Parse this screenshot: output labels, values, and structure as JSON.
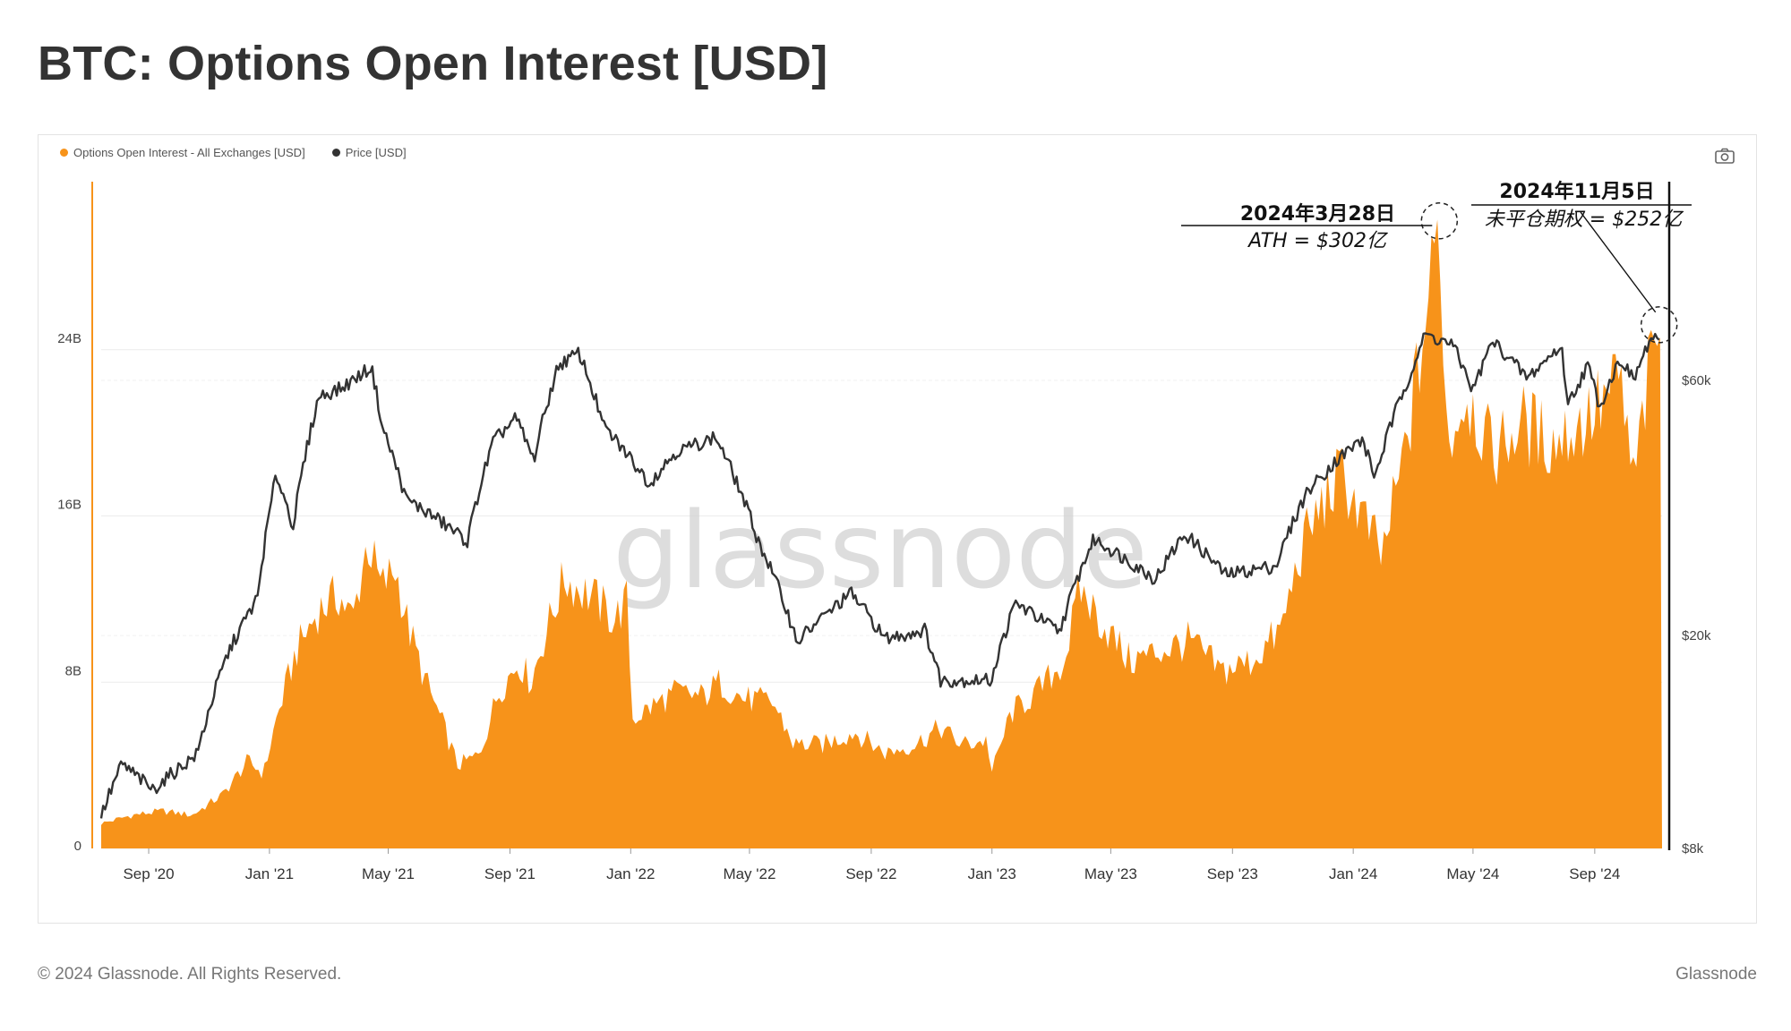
{
  "title": "BTC: Options Open Interest [USD]",
  "legend": [
    {
      "label": "Options Open Interest - All Exchanges [USD]",
      "color": "#f7931a"
    },
    {
      "label": "Price [USD]",
      "color": "#333333"
    }
  ],
  "watermark": "glassnode",
  "footer": {
    "copyright": "© 2024 Glassnode. All Rights Reserved.",
    "brand": "Glassnode"
  },
  "icons": {
    "camera": "camera-icon"
  },
  "annotations": [
    {
      "date": "2024年3月28日",
      "text": "ATH = $302亿",
      "value_usd": 30200000000
    },
    {
      "date": "2024年11月5日",
      "text": "未平仓期权 = $252亿",
      "value_usd": 25200000000
    }
  ],
  "chart_data": {
    "type": "area",
    "x_tick_labels": [
      "Sep '20",
      "Jan '21",
      "May '21",
      "Sep '21",
      "Jan '22",
      "May '22",
      "Sep '22",
      "Jan '23",
      "May '23",
      "Sep '23",
      "Jan '24",
      "May '24",
      "Sep '24"
    ],
    "left_axis": {
      "ticks": [
        "0",
        "8B",
        "16B",
        "24B"
      ],
      "ylim": [
        0,
        32000000000
      ]
    },
    "right_axis": {
      "ticks": [
        "$8k",
        "$20k",
        "$60k"
      ],
      "scale": "log"
    },
    "grid": true,
    "legend_position": "top-left",
    "x_range": [
      "2020-07-15",
      "2024-11-08"
    ],
    "series": [
      {
        "name": "Options Open Interest - All Exchanges [USD]",
        "type": "area",
        "axis": "left",
        "color": "#f7931a",
        "points": [
          [
            "2020-07-15",
            1.2
          ],
          [
            "2020-08-15",
            1.6
          ],
          [
            "2020-09-15",
            1.8
          ],
          [
            "2020-10-15",
            1.6
          ],
          [
            "2020-11-15",
            2.6
          ],
          [
            "2020-12-10",
            4.2
          ],
          [
            "2020-12-26",
            3.6
          ],
          [
            "2021-01-08",
            6.2
          ],
          [
            "2021-01-28",
            9.5
          ],
          [
            "2021-02-20",
            11.5
          ],
          [
            "2021-03-12",
            12.2
          ],
          [
            "2021-03-26",
            11.0
          ],
          [
            "2021-04-10",
            14.8
          ],
          [
            "2021-04-24",
            12.5
          ],
          [
            "2021-05-08",
            13.5
          ],
          [
            "2021-05-22",
            10.5
          ],
          [
            "2021-06-08",
            8.0
          ],
          [
            "2021-06-25",
            6.0
          ],
          [
            "2021-07-10",
            4.0
          ],
          [
            "2021-08-01",
            4.5
          ],
          [
            "2021-08-20",
            7.5
          ],
          [
            "2021-09-10",
            9.0
          ],
          [
            "2021-09-22",
            8.0
          ],
          [
            "2021-10-08",
            10.5
          ],
          [
            "2021-10-26",
            13.0
          ],
          [
            "2021-11-10",
            12.5
          ],
          [
            "2021-11-26",
            12.0
          ],
          [
            "2021-12-15",
            11.0
          ],
          [
            "2021-12-30",
            12.0
          ],
          [
            "2022-01-01",
            6.2
          ],
          [
            "2022-02-15",
            7.5
          ],
          [
            "2022-03-15",
            7.3
          ],
          [
            "2022-04-01",
            8.0
          ],
          [
            "2022-04-25",
            7.2
          ],
          [
            "2022-05-25",
            7.0
          ],
          [
            "2022-06-15",
            5.0
          ],
          [
            "2022-07-15",
            5.0
          ],
          [
            "2022-08-15",
            5.6
          ],
          [
            "2022-09-15",
            4.6
          ],
          [
            "2022-10-15",
            5.0
          ],
          [
            "2022-11-10",
            5.8
          ],
          [
            "2022-12-01",
            5.0
          ],
          [
            "2022-12-28",
            5.2
          ],
          [
            "2022-12-31",
            3.5
          ],
          [
            "2023-01-20",
            6.5
          ],
          [
            "2023-02-15",
            7.5
          ],
          [
            "2023-03-15",
            9.0
          ],
          [
            "2023-03-31",
            12.5
          ],
          [
            "2023-04-20",
            11.0
          ],
          [
            "2023-05-20",
            9.0
          ],
          [
            "2023-06-20",
            9.5
          ],
          [
            "2023-07-20",
            10.0
          ],
          [
            "2023-08-20",
            8.5
          ],
          [
            "2023-09-20",
            9.0
          ],
          [
            "2023-10-20",
            10.5
          ],
          [
            "2023-11-10",
            14.5
          ],
          [
            "2023-11-30",
            16.5
          ],
          [
            "2023-12-20",
            18.0
          ],
          [
            "2024-01-10",
            16.0
          ],
          [
            "2024-01-30",
            14.0
          ],
          [
            "2024-02-20",
            18.5
          ],
          [
            "2024-03-10",
            24.0
          ],
          [
            "2024-03-28",
            30.2
          ],
          [
            "2024-04-05",
            19.5
          ],
          [
            "2024-04-25",
            22.0
          ],
          [
            "2024-05-20",
            19.0
          ],
          [
            "2024-06-20",
            20.5
          ],
          [
            "2024-07-20",
            19.5
          ],
          [
            "2024-08-20",
            20.5
          ],
          [
            "2024-09-10",
            21.5
          ],
          [
            "2024-09-27",
            22.5
          ],
          [
            "2024-10-10",
            17.5
          ],
          [
            "2024-10-25",
            22.5
          ],
          [
            "2024-11-05",
            25.2
          ],
          [
            "2024-11-08",
            25.0
          ]
        ]
      },
      {
        "name": "Price [USD]",
        "type": "line",
        "axis": "right",
        "color": "#333333",
        "points": [
          [
            "2020-07-15",
            9200
          ],
          [
            "2020-08-05",
            11500
          ],
          [
            "2020-09-05",
            10300
          ],
          [
            "2020-10-20",
            12000
          ],
          [
            "2020-11-20",
            18500
          ],
          [
            "2020-12-20",
            23500
          ],
          [
            "2021-01-08",
            40000
          ],
          [
            "2021-01-25",
            32000
          ],
          [
            "2021-02-20",
            56000
          ],
          [
            "2021-03-15",
            58000
          ],
          [
            "2021-04-14",
            63500
          ],
          [
            "2021-04-25",
            49000
          ],
          [
            "2021-05-19",
            36000
          ],
          [
            "2021-06-20",
            33000
          ],
          [
            "2021-07-20",
            30000
          ],
          [
            "2021-08-15",
            46000
          ],
          [
            "2021-09-07",
            51000
          ],
          [
            "2021-09-25",
            42500
          ],
          [
            "2021-10-20",
            64000
          ],
          [
            "2021-11-10",
            67500
          ],
          [
            "2021-12-05",
            49000
          ],
          [
            "2022-01-20",
            38500
          ],
          [
            "2022-02-15",
            44000
          ],
          [
            "2022-03-28",
            47000
          ],
          [
            "2022-05-10",
            30000
          ],
          [
            "2022-06-18",
            19500
          ],
          [
            "2022-08-12",
            24000
          ],
          [
            "2022-09-15",
            19700
          ],
          [
            "2022-10-25",
            20500
          ],
          [
            "2022-11-10",
            16500
          ],
          [
            "2022-12-31",
            16500
          ],
          [
            "2023-01-25",
            23000
          ],
          [
            "2023-03-10",
            20300
          ],
          [
            "2023-04-14",
            30300
          ],
          [
            "2023-06-15",
            25500
          ],
          [
            "2023-07-15",
            31000
          ],
          [
            "2023-08-25",
            26000
          ],
          [
            "2023-10-15",
            27000
          ],
          [
            "2023-11-15",
            37000
          ],
          [
            "2023-12-15",
            42500
          ],
          [
            "2024-01-10",
            46500
          ],
          [
            "2024-01-23",
            39500
          ],
          [
            "2024-02-28",
            62000
          ],
          [
            "2024-03-14",
            73000
          ],
          [
            "2024-04-10",
            70000
          ],
          [
            "2024-05-01",
            57500
          ],
          [
            "2024-05-21",
            71000
          ],
          [
            "2024-06-25",
            60500
          ],
          [
            "2024-07-29",
            69500
          ],
          [
            "2024-08-05",
            54000
          ],
          [
            "2024-08-25",
            64000
          ],
          [
            "2024-09-06",
            53500
          ],
          [
            "2024-09-27",
            66000
          ],
          [
            "2024-10-10",
            60000
          ],
          [
            "2024-10-29",
            72500
          ],
          [
            "2024-11-05",
            69500
          ]
        ]
      }
    ]
  }
}
